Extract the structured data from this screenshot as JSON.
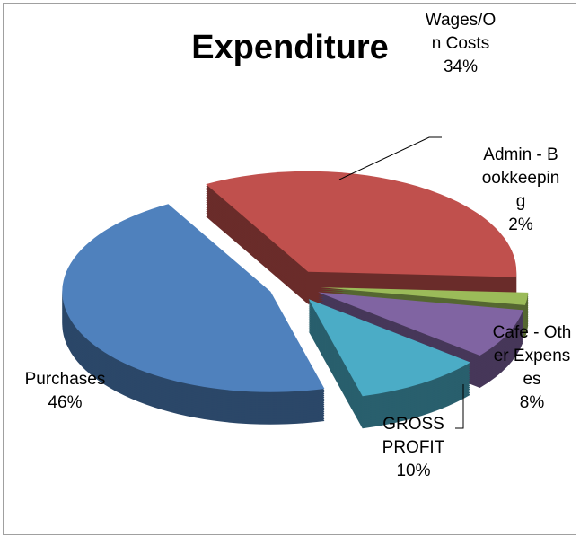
{
  "chart_data": {
    "type": "pie",
    "title": "Expenditure",
    "categories": [
      "Purchases",
      "Wages/On Costs",
      "Admin - Bookkeeping",
      "Cafe - Other Expenses",
      "GROSS PROFIT"
    ],
    "values": [
      46,
      34,
      2,
      8,
      10
    ],
    "value_labels": [
      "46%",
      "34%",
      "2%",
      "8%",
      "10%"
    ],
    "colors": [
      "#4f81bd",
      "#c0504d",
      "#9bbb59",
      "#8064a2",
      "#4bacc6"
    ]
  }
}
